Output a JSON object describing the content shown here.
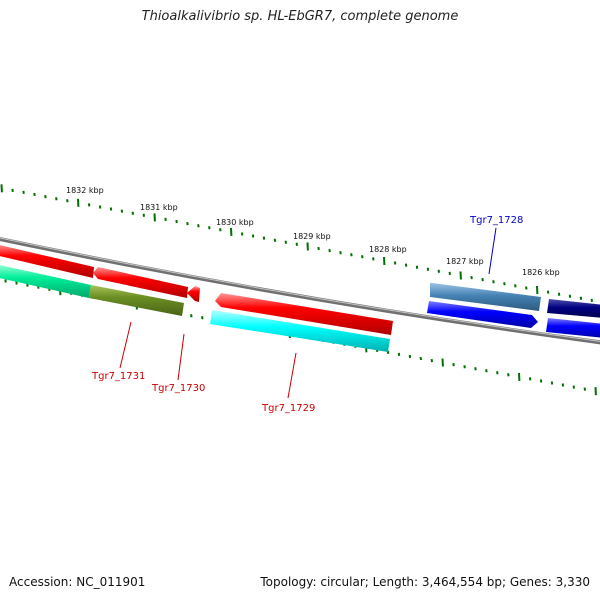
{
  "title": "Thioalkalivibrio sp. HL-EbGR7, complete genome",
  "footer": {
    "accession": "Accession: NC_011901",
    "topology": "Topology: circular; Length: 3,464,554 bp; Genes: 3,330"
  },
  "scale_labels": [
    "1832 kbp",
    "1831 kbp",
    "1830 kbp",
    "1829 kbp",
    "1828 kbp",
    "1827 kbp",
    "1826 kbp"
  ],
  "gene_labels": [
    {
      "text": "Tgr7_1728",
      "color": "#0000cc"
    },
    {
      "text": "Tgr7_1731",
      "color": "#cc0000"
    },
    {
      "text": "Tgr7_1730",
      "color": "#cc0000"
    },
    {
      "text": "Tgr7_1729",
      "color": "#cc0000"
    }
  ],
  "colors": {
    "backbone": "#808080",
    "tick": "#007000",
    "forward_gene": "#ff0000",
    "reverse_cyan": "#00ffff",
    "reverse_green": "#00ee99",
    "reverse_olive": "#6b8e23",
    "blue": "#0000ff",
    "steel_blue": "#4682b4",
    "navy": "#000080"
  }
}
